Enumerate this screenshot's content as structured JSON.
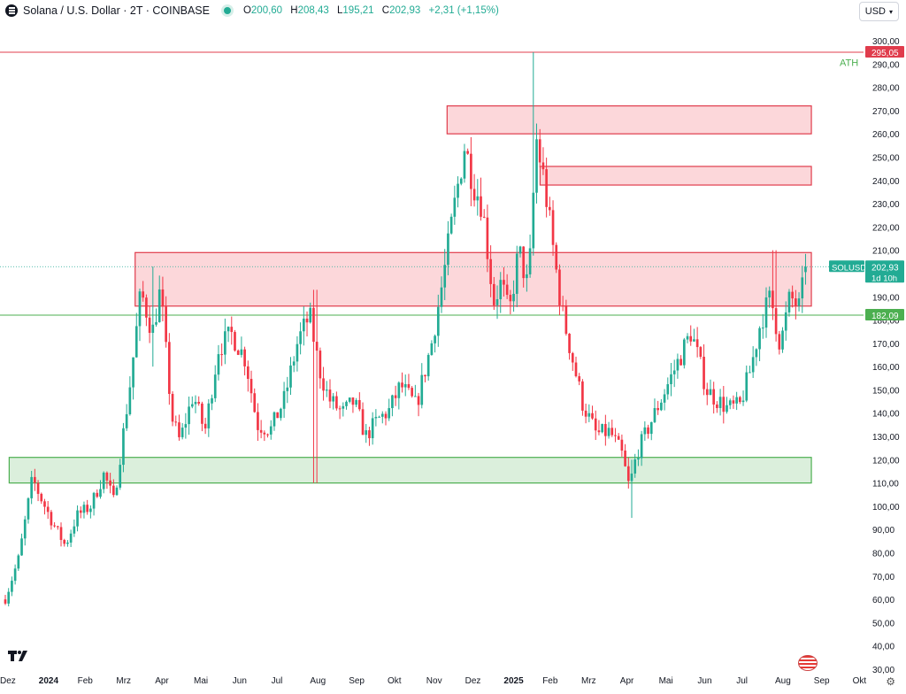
{
  "header": {
    "title": "Solana / U.S. Dollar · 2T · COINBASE",
    "o_label": "O",
    "o_value": "200,60",
    "h_label": "H",
    "h_value": "208,43",
    "l_label": "L",
    "l_value": "195,21",
    "c_label": "C",
    "c_value": "202,93",
    "change": "+2,31 (+1,15%)",
    "currency": "USD"
  },
  "colors": {
    "up": "#22ab94",
    "down": "#f23645",
    "zone_red": "#f23645",
    "zone_green": "#4caf50",
    "ath_line": "#e03c4c"
  },
  "chart_data": {
    "type": "candlestick",
    "y_axis": {
      "min": 30,
      "max": 300,
      "step": 10,
      "side": "right"
    },
    "y_ticks": [
      "300,00",
      "290,00",
      "280,00",
      "270,00",
      "260,00",
      "250,00",
      "240,00",
      "230,00",
      "220,00",
      "210,00",
      "200,00",
      "190,00",
      "180,00",
      "170,00",
      "160,00",
      "150,00",
      "140,00",
      "130,00",
      "120,00",
      "110,00",
      "100,00",
      "90,00",
      "80,00",
      "70,00",
      "60,00",
      "50,00",
      "40,00",
      "30,00"
    ],
    "x_ticks": [
      {
        "label": "Dez",
        "t": 0.0
      },
      {
        "label": "2024",
        "t": 1.0,
        "bold": true
      },
      {
        "label": "Feb",
        "t": 2.0
      },
      {
        "label": "Mrz",
        "t": 3.0
      },
      {
        "label": "Apr",
        "t": 4.0
      },
      {
        "label": "Mai",
        "t": 5.0
      },
      {
        "label": "Jun",
        "t": 6.0
      },
      {
        "label": "Jul",
        "t": 7.0
      },
      {
        "label": "Aug",
        "t": 8.0
      },
      {
        "label": "Sep",
        "t": 9.0
      },
      {
        "label": "Okt",
        "t": 10.0
      },
      {
        "label": "Nov",
        "t": 11.0
      },
      {
        "label": "Dez",
        "t": 12.0
      },
      {
        "label": "2025",
        "t": 13.0,
        "bold": true
      },
      {
        "label": "Feb",
        "t": 14.0
      },
      {
        "label": "Mrz",
        "t": 15.0
      },
      {
        "label": "Apr",
        "t": 16.0
      },
      {
        "label": "Mai",
        "t": 17.0
      },
      {
        "label": "Jun",
        "t": 18.0
      },
      {
        "label": "Jul",
        "t": 19.0
      },
      {
        "label": "Aug",
        "t": 20.0
      },
      {
        "label": "Sep",
        "t": 21.0
      },
      {
        "label": "Okt",
        "t": 22.0
      }
    ],
    "zones": [
      {
        "kind": "resistance",
        "t0": 11.4,
        "t1": 20.8,
        "low": 260,
        "high": 272
      },
      {
        "kind": "resistance",
        "t0": 13.8,
        "t1": 20.8,
        "low": 238,
        "high": 246
      },
      {
        "kind": "resistance",
        "t0": 3.35,
        "t1": 20.8,
        "low": 186,
        "high": 209
      },
      {
        "kind": "support",
        "t0": 0.1,
        "t1": 20.8,
        "low": 110,
        "high": 121
      }
    ],
    "lines": [
      {
        "label": "295,05",
        "value": 295.05,
        "color": "#e03c4c"
      },
      {
        "label": "182,09",
        "value": 182.09,
        "color": "#4caf50"
      }
    ],
    "ath_label": "ATH",
    "last_price": {
      "symbol": "SOLUSD",
      "price": "202,93",
      "countdown": "1d 10h",
      "value": 202.93
    },
    "keypoints": [
      [
        0.0,
        60
      ],
      [
        0.35,
        78
      ],
      [
        0.7,
        112
      ],
      [
        0.85,
        106
      ],
      [
        1.25,
        92
      ],
      [
        1.55,
        83
      ],
      [
        1.85,
        96
      ],
      [
        2.2,
        100
      ],
      [
        2.55,
        114
      ],
      [
        2.8,
        102
      ],
      [
        3.2,
        150
      ],
      [
        3.5,
        192
      ],
      [
        3.8,
        175
      ],
      [
        4.0,
        193
      ],
      [
        4.3,
        138
      ],
      [
        4.5,
        128
      ],
      [
        4.85,
        148
      ],
      [
        5.15,
        132
      ],
      [
        5.5,
        168
      ],
      [
        5.85,
        174
      ],
      [
        6.2,
        163
      ],
      [
        6.5,
        135
      ],
      [
        6.85,
        133
      ],
      [
        7.2,
        146
      ],
      [
        7.55,
        171
      ],
      [
        7.85,
        182
      ],
      [
        8.1,
        159
      ],
      [
        8.35,
        146
      ],
      [
        8.7,
        140
      ],
      [
        9.0,
        145
      ],
      [
        9.3,
        130
      ],
      [
        9.6,
        137
      ],
      [
        9.9,
        141
      ],
      [
        10.2,
        152
      ],
      [
        10.6,
        143
      ],
      [
        11.0,
        170
      ],
      [
        11.3,
        198
      ],
      [
        11.6,
        230
      ],
      [
        11.85,
        255
      ],
      [
        12.1,
        238
      ],
      [
        12.3,
        230
      ],
      [
        12.6,
        188
      ],
      [
        12.8,
        196
      ],
      [
        13.0,
        182
      ],
      [
        13.25,
        210
      ],
      [
        13.5,
        193
      ],
      [
        13.7,
        258
      ],
      [
        13.9,
        240
      ],
      [
        14.1,
        215
      ],
      [
        14.35,
        185
      ],
      [
        14.6,
        166
      ],
      [
        14.9,
        144
      ],
      [
        15.25,
        131
      ],
      [
        15.6,
        132
      ],
      [
        15.9,
        123
      ],
      [
        16.1,
        108
      ],
      [
        16.3,
        123
      ],
      [
        16.6,
        134
      ],
      [
        16.95,
        147
      ],
      [
        17.3,
        160
      ],
      [
        17.7,
        175
      ],
      [
        18.1,
        150
      ],
      [
        18.35,
        146
      ],
      [
        18.65,
        142
      ],
      [
        18.95,
        143
      ],
      [
        19.25,
        160
      ],
      [
        19.5,
        180
      ],
      [
        19.75,
        190
      ],
      [
        20.0,
        169
      ],
      [
        20.25,
        190
      ],
      [
        20.5,
        185
      ],
      [
        20.65,
        203
      ]
    ],
    "wick_events": [
      {
        "t": 13.65,
        "high": 295.05,
        "low": 240
      },
      {
        "t": 16.2,
        "high": 120,
        "low": 95
      },
      {
        "t": 8.0,
        "high": 193,
        "low": 110
      },
      {
        "t": 3.8,
        "high": 203,
        "low": 160
      },
      {
        "t": 19.85,
        "high": 210,
        "low": 180
      }
    ],
    "candles_count": 245,
    "last_candle": {
      "o": 200.6,
      "h": 208.43,
      "l": 195.21,
      "c": 202.93
    }
  }
}
